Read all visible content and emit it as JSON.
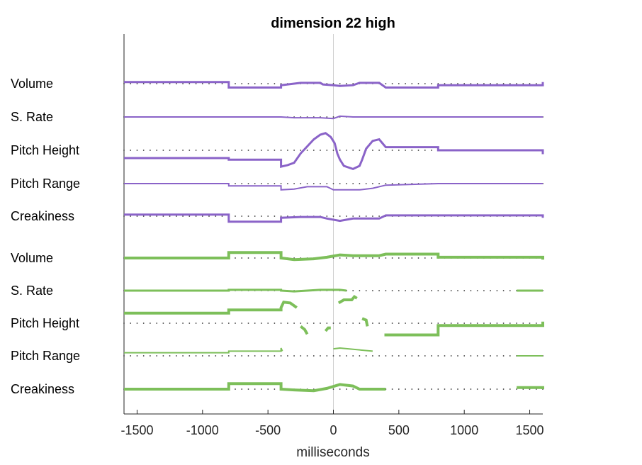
{
  "chart_data": {
    "type": "line",
    "title": "dimension 22 high",
    "xlabel": "milliseconds",
    "xlim": [
      -1600,
      1600
    ],
    "xticks": [
      -1500,
      -1000,
      -500,
      0,
      500,
      1000,
      1500
    ],
    "xtick_labels": [
      "-1500",
      "-1000",
      "-500",
      "0",
      "500",
      "1000",
      "1500"
    ],
    "reference_line_x": 0,
    "colors": {
      "purple": "#8a63c8",
      "green": "#7dbf5a",
      "reference": "#cfcfcf",
      "dots": "#333333"
    },
    "groups": [
      {
        "color": "purple",
        "rows": [
          {
            "label": "Volume",
            "width": 3,
            "points": [
              [
                -1600,
                0.1
              ],
              [
                -800,
                0.1
              ],
              [
                -800,
                -0.25
              ],
              [
                -400,
                -0.25
              ],
              [
                -400,
                -0.1
              ],
              [
                -350,
                -0.05
              ],
              [
                -250,
                0.05
              ],
              [
                -100,
                0.05
              ],
              [
                -80,
                -0.05
              ],
              [
                0,
                -0.1
              ],
              [
                50,
                -0.15
              ],
              [
                150,
                -0.1
              ],
              [
                200,
                0.05
              ],
              [
                350,
                0.05
              ],
              [
                400,
                -0.25
              ],
              [
                800,
                -0.25
              ],
              [
                800,
                -0.1
              ],
              [
                1600,
                -0.1
              ],
              [
                1600,
                0.1
              ]
            ]
          },
          {
            "label": "S. Rate",
            "width": 2,
            "points": [
              [
                -1600,
                0
              ],
              [
                -400,
                0
              ],
              [
                -300,
                -0.05
              ],
              [
                -100,
                -0.05
              ],
              [
                0,
                -0.1
              ],
              [
                50,
                0.05
              ],
              [
                150,
                0
              ],
              [
                400,
                0
              ],
              [
                1600,
                0
              ]
            ]
          },
          {
            "label": "Pitch Height",
            "width": 3,
            "points": [
              [
                -1600,
                -0.5
              ],
              [
                -800,
                -0.5
              ],
              [
                -800,
                -0.6
              ],
              [
                -400,
                -0.6
              ],
              [
                -400,
                -1.05
              ],
              [
                -350,
                -0.95
              ],
              [
                -300,
                -0.8
              ],
              [
                -250,
                -0.2
              ],
              [
                -200,
                0.25
              ],
              [
                -150,
                0.7
              ],
              [
                -100,
                1.0
              ],
              [
                -60,
                1.1
              ],
              [
                -20,
                0.85
              ],
              [
                10,
                0.45
              ],
              [
                30,
                -0.2
              ],
              [
                50,
                -0.6
              ],
              [
                80,
                -1.0
              ],
              [
                150,
                -1.2
              ],
              [
                200,
                -1.0
              ],
              [
                220,
                -0.6
              ],
              [
                250,
                0.1
              ],
              [
                300,
                0.6
              ],
              [
                350,
                0.7
              ],
              [
                400,
                0.2
              ],
              [
                800,
                0.2
              ],
              [
                800,
                0.0
              ],
              [
                1600,
                0.0
              ],
              [
                1600,
                -0.25
              ]
            ]
          },
          {
            "label": "Pitch Range",
            "width": 2,
            "points": [
              [
                -1600,
                0
              ],
              [
                -800,
                0
              ],
              [
                -800,
                -0.15
              ],
              [
                -400,
                -0.15
              ],
              [
                -400,
                -0.4
              ],
              [
                -300,
                -0.35
              ],
              [
                -200,
                -0.2
              ],
              [
                -50,
                -0.2
              ],
              [
                0,
                -0.4
              ],
              [
                200,
                -0.4
              ],
              [
                300,
                -0.3
              ],
              [
                400,
                -0.1
              ],
              [
                800,
                0
              ],
              [
                1600,
                0
              ]
            ]
          },
          {
            "label": "Creakiness",
            "width": 3,
            "points": [
              [
                -1600,
                0.1
              ],
              [
                -800,
                0.1
              ],
              [
                -800,
                -0.35
              ],
              [
                -400,
                -0.35
              ],
              [
                -400,
                -0.1
              ],
              [
                -250,
                -0.05
              ],
              [
                -100,
                -0.05
              ],
              [
                -50,
                -0.15
              ],
              [
                50,
                -0.3
              ],
              [
                150,
                -0.15
              ],
              [
                350,
                -0.15
              ],
              [
                400,
                0.05
              ],
              [
                800,
                0.05
              ],
              [
                1600,
                0.05
              ],
              [
                1600,
                -0.1
              ]
            ]
          }
        ]
      },
      {
        "color": "green",
        "rows": [
          {
            "label": "Volume",
            "width": 4,
            "points": [
              [
                -1600,
                0
              ],
              [
                -800,
                0
              ],
              [
                -800,
                0.35
              ],
              [
                -400,
                0.35
              ],
              [
                -400,
                0
              ],
              [
                -300,
                -0.1
              ],
              [
                -150,
                -0.05
              ],
              [
                -50,
                0.05
              ],
              [
                50,
                0.2
              ],
              [
                150,
                0.15
              ],
              [
                350,
                0.15
              ],
              [
                400,
                0.25
              ],
              [
                800,
                0.25
              ],
              [
                800,
                0.05
              ],
              [
                1600,
                0.05
              ],
              [
                1600,
                -0.1
              ]
            ]
          },
          {
            "label": "S. Rate",
            "width": 3,
            "segments": [
              [
                [
                  -1600,
                  0
                ],
                [
                  -800,
                  0
                ],
                [
                  -800,
                  0.05
                ],
                [
                  -400,
                  0.05
                ],
                [
                  -400,
                  0
                ],
                [
                  -300,
                  -0.05
                ],
                [
                  -100,
                  0.05
                ],
                [
                  50,
                  0.05
                ],
                [
                  100,
                  0
                ]
              ],
              [
                [
                  1400,
                  0
                ],
                [
                  1600,
                  0
                ]
              ]
            ]
          },
          {
            "label": "Pitch Height",
            "width": 4,
            "segments": [
              [
                [
                  -1600,
                  0.65
                ],
                [
                  -800,
                  0.65
                ],
                [
                  -800,
                  0.85
                ],
                [
                  -400,
                  0.85
                ],
                [
                  -400,
                  1.0
                ],
                [
                  -380,
                  1.35
                ],
                [
                  -330,
                  1.3
                ],
                [
                  -280,
                  1.0
                ]
              ],
              [
                [
                  -250,
                  -0.2
                ],
                [
                  -220,
                  -0.4
                ],
                [
                  -200,
                  -0.7
                ]
              ],
              [
                [
                  -60,
                  -0.5
                ],
                [
                  -40,
                  -0.3
                ],
                [
                  -20,
                  -0.3
                ]
              ],
              [
                [
                  40,
                  1.3
                ],
                [
                  80,
                  1.5
                ],
                [
                  140,
                  1.5
                ],
                [
                  160,
                  1.7
                ],
                [
                  180,
                  1.6
                ]
              ],
              [
                [
                  220,
                  0.3
                ],
                [
                  250,
                  0.2
                ],
                [
                  260,
                  -0.2
                ]
              ],
              [
                [
                  390,
                  -0.75
                ],
                [
                  800,
                  -0.75
                ],
                [
                  800,
                  -0.15
                ],
                [
                  1600,
                  -0.15
                ],
                [
                  1600,
                  0.1
                ]
              ]
            ]
          },
          {
            "label": "Pitch Range",
            "width": 2,
            "segments": [
              [
                [
                  -1600,
                  0.2
                ],
                [
                  -800,
                  0.2
                ],
                [
                  -800,
                  0.3
                ],
                [
                  -400,
                  0.3
                ],
                [
                  -400,
                  0.5
                ],
                [
                  -390,
                  0.3
                ]
              ],
              [
                [
                  0,
                  0.45
                ],
                [
                  50,
                  0.5
                ],
                [
                  300,
                  0.3
                ]
              ],
              [
                [
                  1400,
                  0
                ],
                [
                  1600,
                  0
                ]
              ]
            ]
          },
          {
            "label": "Creakiness",
            "width": 4,
            "segments": [
              [
                [
                  -1600,
                  0
                ],
                [
                  -800,
                  0
                ],
                [
                  -800,
                  0.35
                ],
                [
                  -400,
                  0.35
                ],
                [
                  -400,
                  0
                ],
                [
                  -300,
                  -0.05
                ],
                [
                  -150,
                  -0.1
                ],
                [
                  -50,
                  0.05
                ],
                [
                  50,
                  0.3
                ],
                [
                  150,
                  0.2
                ],
                [
                  200,
                  0
                ],
                [
                  400,
                  0
                ]
              ],
              [
                [
                  1400,
                  0.1
                ],
                [
                  1600,
                  0.1
                ],
                [
                  1600,
                  0
                ]
              ]
            ]
          }
        ]
      }
    ]
  }
}
